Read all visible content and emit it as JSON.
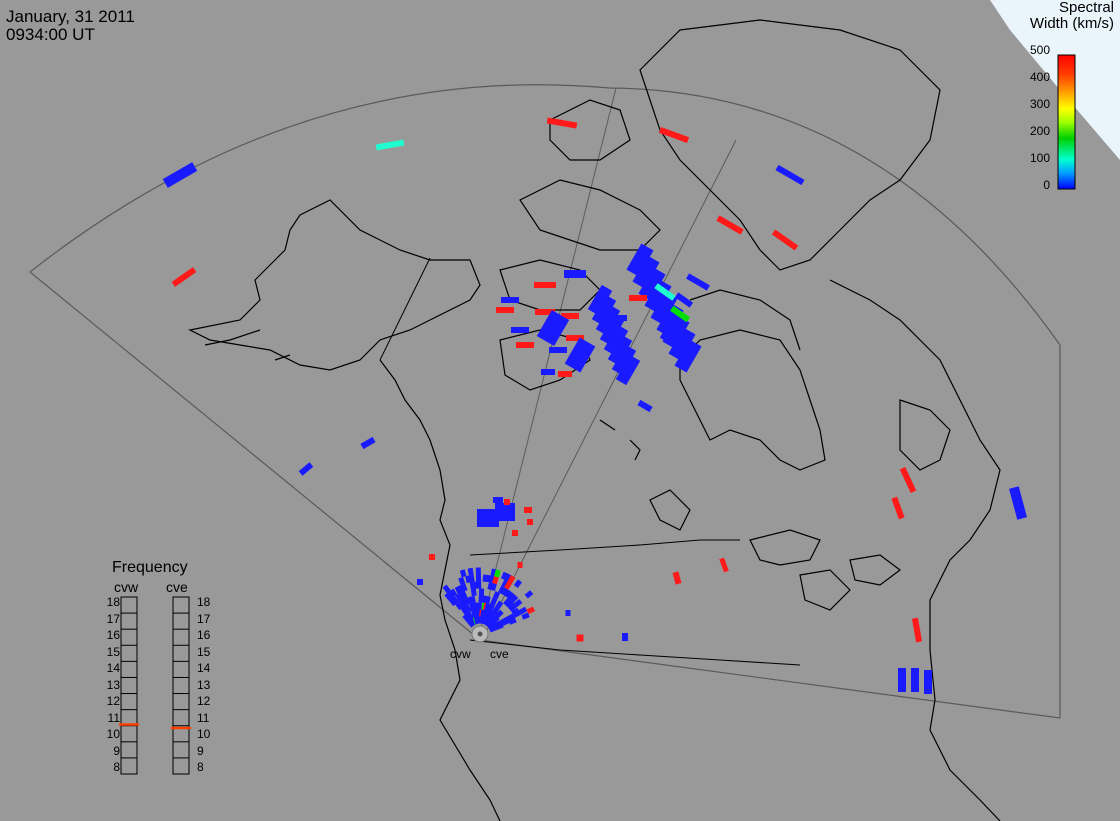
{
  "header": {
    "date": "January, 31 2011",
    "time": "0934:00 UT"
  },
  "colorbar": {
    "title_line1": "Spectral",
    "title_line2": "Width (km/s)",
    "ticks": [
      "500",
      "400",
      "300",
      "200",
      "100",
      "0"
    ],
    "colors": [
      "#0000ff",
      "#00a0ff",
      "#00ffd0",
      "#00d000",
      "#a0ff00",
      "#ffff00",
      "#ffa000",
      "#ff4000",
      "#ff0000"
    ]
  },
  "frequency_panel": {
    "title": "Frequency",
    "radars": [
      {
        "name": "cvw",
        "value": 10.8
      },
      {
        "name": "cve",
        "value": 10.6
      }
    ],
    "scale": [
      "18",
      "17",
      "16",
      "15",
      "14",
      "13",
      "12",
      "11",
      "10",
      "9",
      "8"
    ],
    "marker_color": "#ff4000"
  },
  "sites": {
    "west": "cvw",
    "east": "cve"
  },
  "colors": {
    "background": "#999999",
    "land_line": "#000000",
    "ocean_pole": "#e8f4fa",
    "fov_line": "#555555",
    "low_width": "#1a1aff",
    "high_width": "#ff1a1a",
    "mid_width": "#20ffd0",
    "green_width": "#00e000"
  }
}
